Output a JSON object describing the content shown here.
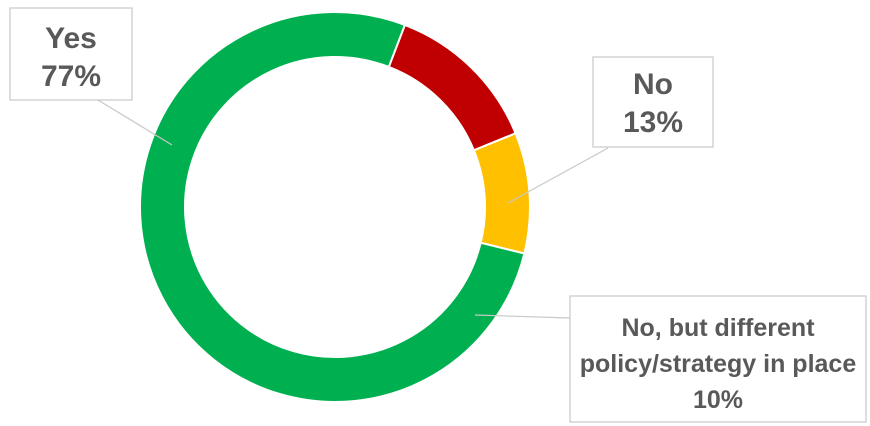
{
  "chart_data": {
    "type": "pie",
    "variant": "donut",
    "start_angle_deg": 21,
    "direction": "clockwise",
    "slices": [
      {
        "label": "No",
        "value": 13,
        "value_label": "13%",
        "color": "#c00000"
      },
      {
        "label": "No, but different policy/strategy in place",
        "label_lines": [
          "No, but different",
          "policy/strategy in place"
        ],
        "value": 10,
        "value_label": "10%",
        "color": "#ffc000"
      },
      {
        "label": "Yes",
        "value": 77,
        "value_label": "77%",
        "color": "#00b050"
      }
    ]
  }
}
